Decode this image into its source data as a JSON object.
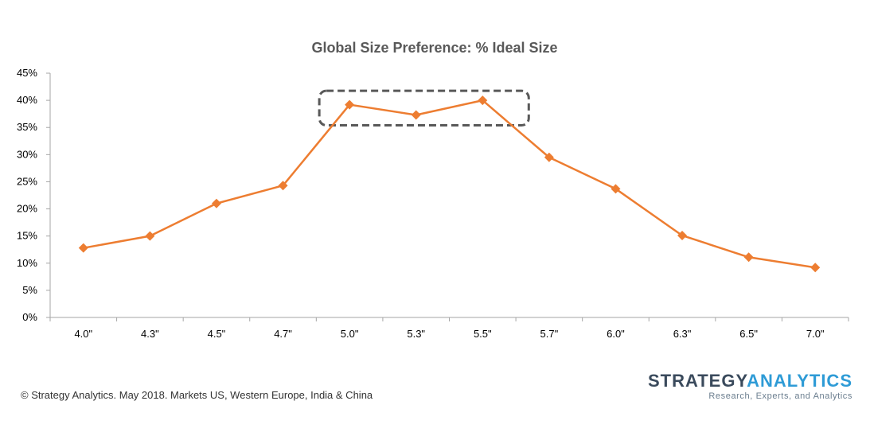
{
  "chart_data": {
    "type": "line",
    "title": "Global Size Preference: % Ideal Size",
    "xlabel": "",
    "ylabel": "",
    "categories": [
      "4.0\"",
      "4.3\"",
      "4.5\"",
      "4.7\"",
      "5.0\"",
      "5.3\"",
      "5.5\"",
      "5.7\"",
      "6.0\"",
      "6.3\"",
      "6.5\"",
      "7.0\""
    ],
    "series": [
      {
        "values": [
          12.8,
          15.0,
          21.0,
          24.3,
          39.2,
          37.3,
          40.0,
          29.5,
          23.7,
          15.1,
          11.1,
          9.2
        ]
      }
    ],
    "ylim": [
      0,
      45
    ],
    "yticks": [
      "0%",
      "5%",
      "10%",
      "15%",
      "20%",
      "25%",
      "30%",
      "35%",
      "40%",
      "45%"
    ],
    "grid": false,
    "legend": "none",
    "highlight": {
      "categories": [
        "5.0\"",
        "5.5\""
      ],
      "style": "dashed-rounded-box"
    },
    "colors": {
      "line": "#ED7D31",
      "marker": "#ED7D31",
      "axis": "#A6A6A6",
      "highlight": "#595959"
    }
  },
  "footer": {
    "source": "© Strategy Analytics. May 2018. Markets US, Western Europe, India & China"
  },
  "brand": {
    "name_part1": "STRATEGY",
    "name_part2": "ANALYTICS",
    "tagline": "Research, Experts, and Analytics"
  }
}
